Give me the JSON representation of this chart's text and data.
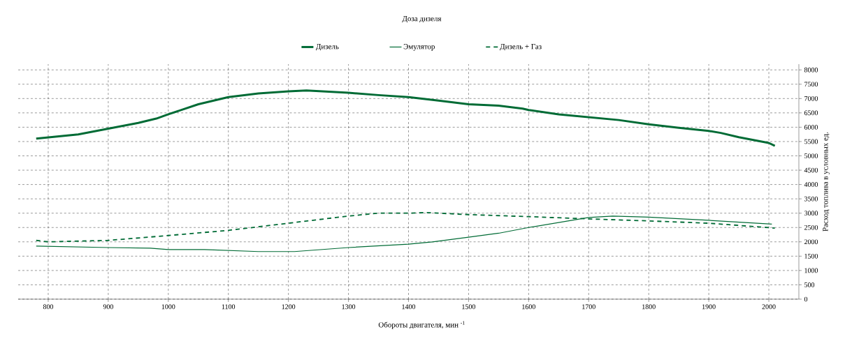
{
  "chart_data": {
    "type": "line",
    "title": "Доза дизеля",
    "xlabel": "Обороты двигателя, мин $^{-1}$",
    "ylabel": "Расход топлива в условных ед.",
    "xlim": [
      750,
      2050
    ],
    "xticks": [
      800,
      900,
      1000,
      1100,
      1200,
      1300,
      1400,
      1500,
      1600,
      1700,
      1800,
      1900,
      2000
    ],
    "ylim": [
      0,
      8200
    ],
    "yticks": [
      0,
      500,
      1000,
      1500,
      2000,
      2500,
      3000,
      3500,
      4000,
      4500,
      5000,
      5500,
      6000,
      6500,
      7000,
      7500,
      8000
    ],
    "grid": true,
    "legend": "top",
    "marker": "none",
    "series": [
      {
        "name": "Дизель",
        "color": "#006b35",
        "line_style": "solid",
        "x": [
          780,
          850,
          900,
          950,
          980,
          1000,
          1050,
          1100,
          1150,
          1200,
          1230,
          1300,
          1350,
          1400,
          1450,
          1500,
          1550,
          1590,
          1600,
          1650,
          1700,
          1750,
          1800,
          1850,
          1900,
          1920,
          1950,
          2000,
          2010
        ],
        "values": [
          5600,
          5750,
          5950,
          6150,
          6300,
          6450,
          6800,
          7050,
          7180,
          7250,
          7280,
          7200,
          7120,
          7050,
          6930,
          6800,
          6750,
          6650,
          6600,
          6450,
          6350,
          6250,
          6100,
          5980,
          5870,
          5800,
          5650,
          5450,
          5350
        ]
      },
      {
        "name": "Эмулятор",
        "color": "#006b35",
        "line_style": "solid",
        "x": [
          780,
          900,
          970,
          1000,
          1060,
          1150,
          1210,
          1300,
          1400,
          1440,
          1500,
          1550,
          1600,
          1700,
          1740,
          1800,
          1900,
          2005
        ],
        "values": [
          1850,
          1800,
          1780,
          1730,
          1730,
          1660,
          1660,
          1800,
          1920,
          2000,
          2160,
          2300,
          2500,
          2850,
          2900,
          2860,
          2750,
          2620
        ]
      },
      {
        "name": "Дизель + Газ",
        "color": "#006b35",
        "line_style": "dashed",
        "x": [
          780,
          800,
          900,
          1000,
          1100,
          1200,
          1300,
          1350,
          1400,
          1430,
          1500,
          1600,
          1700,
          1800,
          1900,
          2010
        ],
        "values": [
          2050,
          2000,
          2050,
          2220,
          2400,
          2650,
          2900,
          3000,
          3000,
          3020,
          2950,
          2880,
          2800,
          2730,
          2650,
          2480
        ]
      }
    ]
  }
}
